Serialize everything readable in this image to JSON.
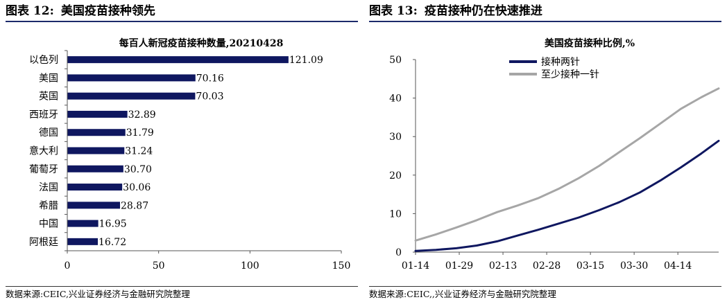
{
  "left_panel": {
    "header_label": "图表 12:",
    "header_title": "美国疫苗接种领先",
    "source": "数据来源:CEIC,兴业证券经济与金融研究院整理"
  },
  "right_panel": {
    "header_label": "图表 13:",
    "header_title": "疫苗接种仍在快速推进",
    "source": "数据来源:CEIC,,兴业证券经济与金融研究院整理"
  },
  "colors": {
    "bar": "#0f1760",
    "line_two_dose": "#0f1760",
    "line_one_dose": "#a6a6a6",
    "header_rule": "#1c2a6b"
  },
  "chart_data": [
    {
      "type": "bar",
      "orientation": "horizontal",
      "title": "每百人新冠疫苗接种数量,20210428",
      "categories": [
        "以色列",
        "美国",
        "英国",
        "西班牙",
        "德国",
        "意大利",
        "葡萄牙",
        "法国",
        "希腊",
        "中国",
        "阿根廷"
      ],
      "values": [
        121.09,
        70.16,
        70.03,
        32.89,
        31.79,
        31.24,
        30.7,
        30.06,
        28.87,
        16.95,
        16.72
      ],
      "value_labels": [
        "121.09",
        "70.16",
        "70.03",
        "32.89",
        "31.79",
        "31.24",
        "30.70",
        "30.06",
        "28.87",
        "16.95",
        "16.72"
      ],
      "xlim": [
        0,
        150
      ],
      "xticks": [
        0,
        50,
        100,
        150
      ],
      "grid": false,
      "legend": false
    },
    {
      "type": "line",
      "title": "美国疫苗接种比例,%",
      "x_start": "01-14",
      "x_end": "04-28",
      "xtick_labels": [
        "01-14",
        "01-29",
        "02-13",
        "02-28",
        "03-15",
        "03-30",
        "04-14"
      ],
      "ylim": [
        0,
        50
      ],
      "yticks": [
        0,
        10,
        20,
        30,
        40,
        50
      ],
      "legend_position": "top-left",
      "grid": false,
      "series": [
        {
          "name": "接种两针",
          "x": [
            "01-14",
            "01-21",
            "01-28",
            "02-04",
            "02-11",
            "02-18",
            "02-25",
            "03-04",
            "03-11",
            "03-18",
            "03-25",
            "04-01",
            "04-08",
            "04-15",
            "04-22",
            "04-28"
          ],
          "values": [
            0.3,
            0.6,
            1.0,
            1.7,
            2.8,
            4.3,
            5.8,
            7.4,
            9.0,
            10.9,
            13.0,
            15.5,
            18.6,
            22.0,
            25.6,
            28.9
          ]
        },
        {
          "name": "至少接种一针",
          "x": [
            "01-14",
            "01-21",
            "01-28",
            "02-04",
            "02-11",
            "02-18",
            "02-25",
            "03-04",
            "03-11",
            "03-18",
            "03-25",
            "04-01",
            "04-08",
            "04-15",
            "04-22",
            "04-28"
          ],
          "values": [
            3.0,
            4.6,
            6.4,
            8.3,
            10.4,
            12.1,
            14.0,
            16.4,
            19.2,
            22.4,
            26.0,
            29.6,
            33.4,
            37.2,
            40.2,
            42.5
          ]
        }
      ]
    }
  ]
}
